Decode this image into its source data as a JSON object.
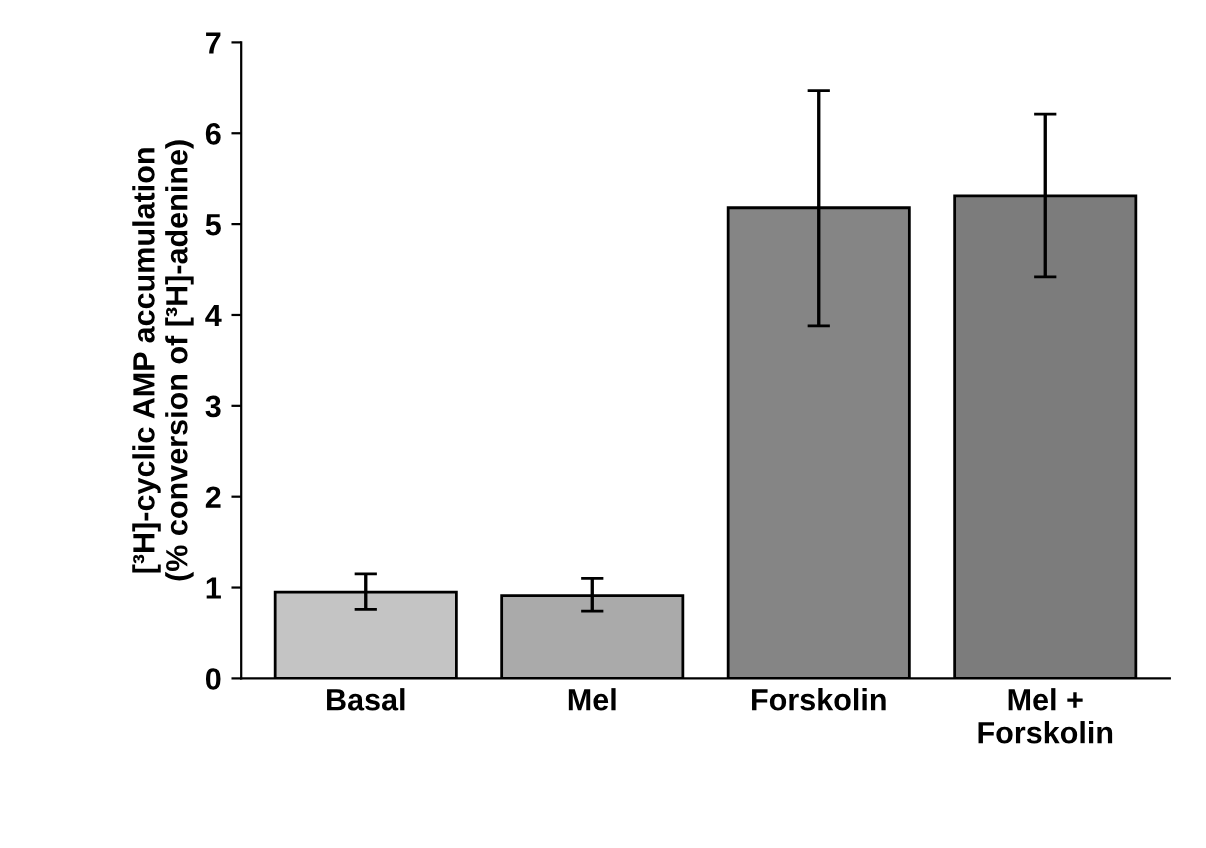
{
  "chart_data": {
    "type": "bar",
    "ylabel": "[³H]-cyclic AMP accumulation\n(% conversion of [³H]-adenine)",
    "categories": [
      "Basal",
      "Mel",
      "Forskolin",
      "Mel +\nForskolin"
    ],
    "values": [
      0.95,
      0.91,
      5.18,
      5.31
    ],
    "errors": [
      [
        0.76,
        1.15
      ],
      [
        0.74,
        1.1
      ],
      [
        3.88,
        6.47
      ],
      [
        4.42,
        6.21
      ]
    ],
    "colors": [
      "#c4c4c4",
      "#aaaaaa",
      "#858585",
      "#7c7c7c"
    ],
    "ylim": [
      0,
      7
    ],
    "yticks": [
      0,
      1,
      2,
      3,
      4,
      5,
      6,
      7
    ],
    "grid": false
  }
}
